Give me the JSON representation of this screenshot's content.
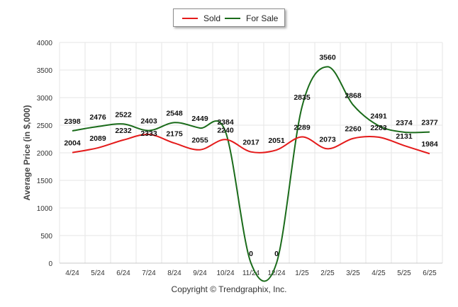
{
  "legend": {
    "sold_label": "Sold",
    "forsale_label": "For Sale"
  },
  "copyright": "Copyright © Trendgraphix, Inc.",
  "colors": {
    "sold": "#e41a1a",
    "for_sale": "#1a6b1a",
    "grid": "#e6e6e6"
  },
  "chart_data": {
    "type": "line",
    "title": "",
    "xlabel": "",
    "ylabel": "Average Price (in $,000)",
    "ylim": [
      0,
      4000
    ],
    "yticks": [
      0,
      500,
      1000,
      1500,
      2000,
      2500,
      3000,
      3500,
      4000
    ],
    "grid": true,
    "legend": "top-center",
    "categories": [
      "4/24",
      "5/24",
      "6/24",
      "7/24",
      "8/24",
      "9/24",
      "10/24",
      "11/24",
      "12/24",
      "1/25",
      "2/25",
      "3/25",
      "4/25",
      "5/25",
      "6/25"
    ],
    "series": [
      {
        "name": "Sold",
        "color": "#e41a1a",
        "values": [
          2004,
          2089,
          2232,
          2333,
          2175,
          2055,
          2240,
          2017,
          2051,
          2289,
          2073,
          2260,
          2283,
          2131,
          1984
        ]
      },
      {
        "name": "For Sale",
        "color": "#1a6b1a",
        "values": [
          2398,
          2476,
          2522,
          2403,
          2548,
          2449,
          2384,
          0,
          0,
          2835,
          3560,
          2868,
          2491,
          2374,
          2377
        ]
      }
    ]
  }
}
